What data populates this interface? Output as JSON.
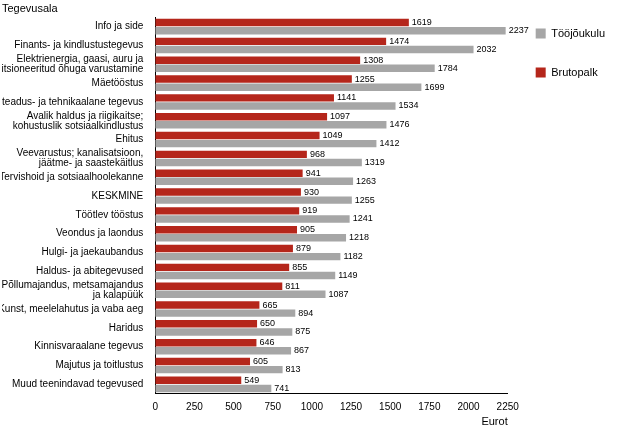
{
  "chart_data": {
    "type": "bar",
    "orientation": "horizontal",
    "ylabel": "Tegevusala",
    "xlabel": "Eurot",
    "categories": [
      "Info ja side",
      "Finants- ja kindlustustegevus",
      "Elektrienergia, gaasi, auru ja\nkonditsioneeritud õhuga varustamine",
      "Mäetööstus",
      "Kutse-, teadus- ja tehnikaalane tegevus",
      "Avalik haldus ja riigikaitse;\nkohustuslik sotsiaalkindlustus",
      "Ehitus",
      "Veevarustus; kanalisatsioon,\njäätme- ja saastekäitlus",
      "Tervishoid ja sotsiaalhoolekanne",
      "KESKMINE",
      "Töötlev tööstus",
      "Veondus ja laondus",
      "Hulgi- ja jaekaubandus",
      "Haldus- ja abitegevused",
      "Põllumajandus, metsamajandus\nja kalapüük",
      "Kunst, meelelahutus ja vaba aeg",
      "Haridus",
      "Kinnisvaraalane tegevus",
      "Majutus ja toitlustus",
      "Muud teenindavad tegevused"
    ],
    "series": [
      {
        "name": "Tööjõukulu",
        "color": "#a6a6a6",
        "values": [
          2237,
          2032,
          1784,
          1699,
          1534,
          1476,
          1412,
          1319,
          1263,
          1255,
          1241,
          1218,
          1182,
          1149,
          1087,
          894,
          875,
          867,
          813,
          741
        ]
      },
      {
        "name": "Brutopalk",
        "color": "#b5261b",
        "values": [
          1619,
          1474,
          1308,
          1255,
          1141,
          1097,
          1049,
          968,
          941,
          930,
          919,
          905,
          879,
          855,
          811,
          665,
          650,
          646,
          605,
          549
        ]
      }
    ],
    "xlim": [
      0,
      2250
    ],
    "xticks": [
      0,
      250,
      500,
      750,
      1000,
      1250,
      1500,
      1750,
      2000,
      2250
    ],
    "grid": false,
    "legend": "right",
    "data_labels": true
  }
}
